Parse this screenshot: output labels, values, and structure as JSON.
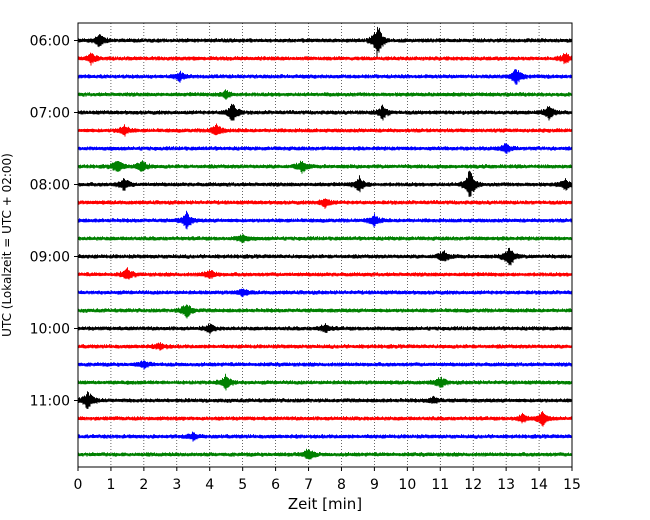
{
  "chart_data": {
    "type": "line",
    "title": "",
    "xlabel": "Zeit  [min]",
    "ylabel": "UTC (Lokalzeit = UTC + 02:00)",
    "xlim": [
      0,
      15
    ],
    "xticks": [
      "0",
      "1",
      "2",
      "3",
      "4",
      "5",
      "6",
      "7",
      "8",
      "9",
      "10",
      "11",
      "12",
      "13",
      "14",
      "15"
    ],
    "yticks": [
      "06:00",
      "07:00",
      "08:00",
      "09:00",
      "10:00",
      "11:00"
    ],
    "row_interval_minutes": 15,
    "row_colors": [
      "#000000",
      "#ff0000",
      "#0000ff",
      "#008000"
    ],
    "grid": "vertical dotted at each minute",
    "series": [
      {
        "start": "06:00",
        "color": "#000000",
        "events": [
          {
            "x": 0.65,
            "amp": 0.9
          },
          {
            "x": 9.1,
            "amp": 2.5
          }
        ]
      },
      {
        "start": "06:15",
        "color": "#ff0000",
        "events": [
          {
            "x": 0.4,
            "amp": 0.8
          },
          {
            "x": 14.8,
            "amp": 0.8
          }
        ]
      },
      {
        "start": "06:30",
        "color": "#0000ff",
        "events": [
          {
            "x": 3.1,
            "amp": 0.7
          },
          {
            "x": 13.3,
            "amp": 1.2
          }
        ]
      },
      {
        "start": "06:45",
        "color": "#008000",
        "events": [
          {
            "x": 4.5,
            "amp": 0.6
          }
        ]
      },
      {
        "start": "07:00",
        "color": "#000000",
        "events": [
          {
            "x": 4.7,
            "amp": 1.5
          },
          {
            "x": 9.25,
            "amp": 1.0
          },
          {
            "x": 14.3,
            "amp": 1.0
          }
        ]
      },
      {
        "start": "07:15",
        "color": "#ff0000",
        "events": [
          {
            "x": 1.4,
            "amp": 0.8
          },
          {
            "x": 4.2,
            "amp": 0.9
          }
        ]
      },
      {
        "start": "07:30",
        "color": "#0000ff",
        "events": [
          {
            "x": 13.0,
            "amp": 0.7
          }
        ]
      },
      {
        "start": "07:45",
        "color": "#008000",
        "events": [
          {
            "x": 1.2,
            "amp": 0.9
          },
          {
            "x": 1.95,
            "amp": 0.9
          },
          {
            "x": 6.8,
            "amp": 0.9
          }
        ]
      },
      {
        "start": "08:00",
        "color": "#000000",
        "events": [
          {
            "x": 1.4,
            "amp": 0.9
          },
          {
            "x": 8.55,
            "amp": 1.1
          },
          {
            "x": 11.9,
            "amp": 2.3
          },
          {
            "x": 14.8,
            "amp": 0.8
          }
        ]
      },
      {
        "start": "08:15",
        "color": "#ff0000",
        "events": [
          {
            "x": 7.5,
            "amp": 0.7
          }
        ]
      },
      {
        "start": "08:30",
        "color": "#0000ff",
        "events": [
          {
            "x": 3.3,
            "amp": 1.2
          },
          {
            "x": 9.0,
            "amp": 0.8
          }
        ]
      },
      {
        "start": "08:45",
        "color": "#008000",
        "events": [
          {
            "x": 5.0,
            "amp": 0.6
          }
        ]
      },
      {
        "start": "09:00",
        "color": "#000000",
        "events": [
          {
            "x": 11.1,
            "amp": 0.9
          },
          {
            "x": 13.1,
            "amp": 1.6
          }
        ]
      },
      {
        "start": "09:15",
        "color": "#ff0000",
        "events": [
          {
            "x": 1.5,
            "amp": 0.8
          },
          {
            "x": 4.0,
            "amp": 0.7
          }
        ]
      },
      {
        "start": "09:30",
        "color": "#0000ff",
        "events": [
          {
            "x": 5.0,
            "amp": 0.5
          }
        ]
      },
      {
        "start": "09:45",
        "color": "#008000",
        "events": [
          {
            "x": 3.3,
            "amp": 1.2
          }
        ]
      },
      {
        "start": "10:00",
        "color": "#000000",
        "events": [
          {
            "x": 4.0,
            "amp": 0.6
          },
          {
            "x": 7.5,
            "amp": 0.6
          }
        ]
      },
      {
        "start": "10:15",
        "color": "#ff0000",
        "events": [
          {
            "x": 2.5,
            "amp": 0.5
          }
        ]
      },
      {
        "start": "10:30",
        "color": "#0000ff",
        "events": [
          {
            "x": 2.0,
            "amp": 0.5
          }
        ]
      },
      {
        "start": "10:45",
        "color": "#008000",
        "events": [
          {
            "x": 4.5,
            "amp": 1.2
          },
          {
            "x": 11.0,
            "amp": 0.8
          }
        ]
      },
      {
        "start": "11:00",
        "color": "#000000",
        "events": [
          {
            "x": 0.3,
            "amp": 1.4
          },
          {
            "x": 10.8,
            "amp": 0.5
          }
        ]
      },
      {
        "start": "11:15",
        "color": "#ff0000",
        "events": [
          {
            "x": 13.5,
            "amp": 0.6
          },
          {
            "x": 14.1,
            "amp": 1.0
          }
        ]
      },
      {
        "start": "11:30",
        "color": "#0000ff",
        "events": [
          {
            "x": 3.5,
            "amp": 0.5
          }
        ]
      },
      {
        "start": "11:45",
        "color": "#008000",
        "events": [
          {
            "x": 7.0,
            "amp": 0.9
          }
        ]
      }
    ]
  }
}
